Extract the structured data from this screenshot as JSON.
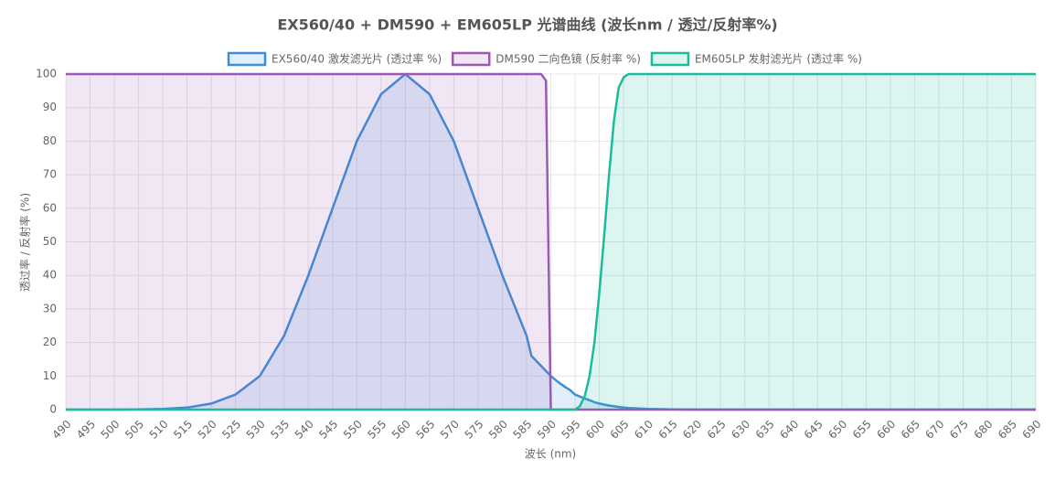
{
  "chart_data": {
    "type": "line",
    "title": "EX560/40 + DM590 + EM605LP 光谱曲线 (波长nm / 透过/反射率%)",
    "x_label": "波长 (nm)",
    "y_label": "透过率 / 反射率 (%)",
    "x": [
      490,
      495,
      500,
      505,
      510,
      515,
      520,
      525,
      530,
      535,
      540,
      545,
      550,
      555,
      560,
      565,
      570,
      575,
      580,
      585,
      586,
      587,
      588,
      589,
      590,
      591,
      592,
      593,
      594,
      595,
      596,
      597,
      598,
      599,
      600,
      601,
      602,
      603,
      604,
      605,
      606,
      610,
      615,
      620,
      625,
      630,
      635,
      640,
      645,
      650,
      655,
      660,
      665,
      670,
      675,
      680,
      685,
      690
    ],
    "series": [
      {
        "name": "EX560/40 激发滤光片 (透过率 %)",
        "color": "#3a8fd6",
        "values": [
          0,
          0,
          0,
          0.05,
          0.2,
          0.6,
          1.8,
          4.5,
          10,
          22,
          40,
          60,
          80,
          94,
          100,
          94,
          80,
          60,
          40,
          22,
          16,
          14.5,
          13,
          11.5,
          10,
          8.8,
          7.7,
          6.7,
          5.8,
          4.5,
          3.9,
          3.3,
          2.8,
          2.2,
          1.8,
          1.5,
          1.2,
          1.0,
          0.8,
          0.6,
          0.5,
          0.2,
          0.05,
          0,
          0,
          0,
          0,
          0,
          0,
          0,
          0,
          0,
          0,
          0,
          0,
          0,
          0,
          0
        ]
      },
      {
        "name": "DM590 二向色镜 (反射率 %)",
        "color": "#9b59b6",
        "values": [
          100,
          100,
          100,
          100,
          100,
          100,
          100,
          100,
          100,
          100,
          100,
          100,
          100,
          100,
          100,
          100,
          100,
          100,
          100,
          100,
          100,
          100,
          100,
          98,
          0,
          0,
          0,
          0,
          0,
          0,
          0,
          0,
          0,
          0,
          0,
          0,
          0,
          0,
          0,
          0,
          0,
          0,
          0,
          0,
          0,
          0,
          0,
          0,
          0,
          0,
          0,
          0,
          0,
          0,
          0,
          0,
          0,
          0
        ]
      },
      {
        "name": "EM605LP 发射滤光片 (透过率 %)",
        "color": "#1abc9c",
        "values": [
          0,
          0,
          0,
          0,
          0,
          0,
          0,
          0,
          0,
          0,
          0,
          0,
          0,
          0,
          0,
          0,
          0,
          0,
          0,
          0,
          0,
          0,
          0,
          0,
          0,
          0,
          0,
          0,
          0,
          0,
          1,
          4,
          10,
          20,
          35,
          52,
          70,
          86,
          96,
          99,
          100,
          100,
          100,
          100,
          100,
          100,
          100,
          100,
          100,
          100,
          100,
          100,
          100,
          100,
          100,
          100,
          100,
          100
        ]
      }
    ],
    "xlim": [
      490,
      690
    ],
    "xticks": [
      490,
      495,
      500,
      505,
      510,
      515,
      520,
      525,
      530,
      535,
      540,
      545,
      550,
      555,
      560,
      565,
      570,
      575,
      580,
      585,
      590,
      595,
      600,
      605,
      610,
      615,
      620,
      625,
      630,
      635,
      640,
      645,
      650,
      655,
      660,
      665,
      670,
      675,
      680,
      685,
      690
    ],
    "ylim": [
      0,
      100
    ],
    "yticks": [
      0,
      10,
      20,
      30,
      40,
      50,
      60,
      70,
      80,
      90,
      100
    ],
    "grid": true,
    "legend": "top"
  }
}
